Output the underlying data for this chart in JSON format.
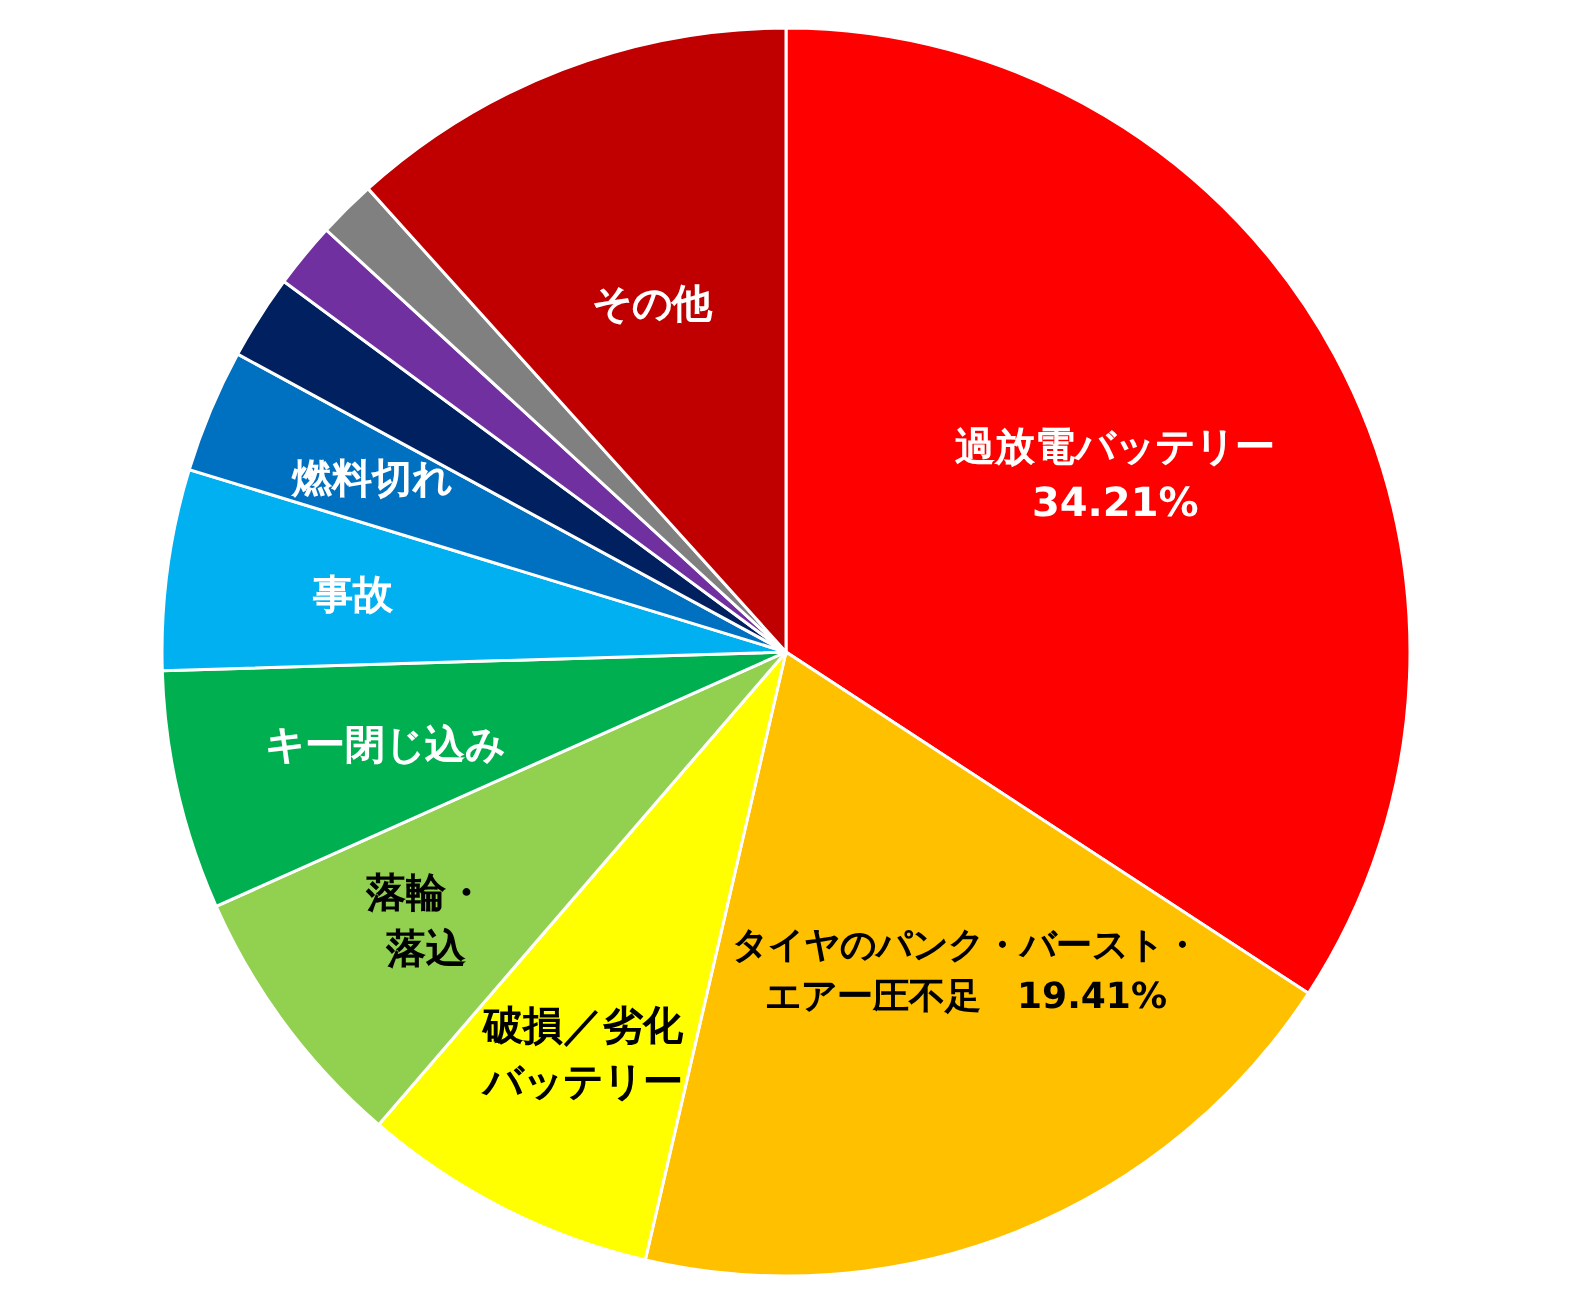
{
  "chart_data": {
    "type": "pie",
    "categories": [
      "過放電バッテリー",
      "タイヤのパンク・バースト・エアー圧不足",
      "破損／劣化バッテリー",
      "落輪・落込",
      "キー閉じ込み",
      "事故",
      "燃料切れ",
      null,
      null,
      null,
      "その他"
    ],
    "values": [
      34.21,
      19.41,
      7.7,
      7.0,
      6.2,
      5.2,
      3.2,
      2.2,
      1.7,
      1.5,
      11.68
    ],
    "colors": [
      "#ff0000",
      "#ffc000",
      "#ffff00",
      "#92d050",
      "#00b050",
      "#00b0f0",
      "#0070c0",
      "#002060",
      "#7030a0",
      "#808080",
      "#c00000"
    ],
    "value_labels": [
      "34.21%",
      "19.41%",
      null,
      null,
      null,
      null,
      null,
      null,
      null,
      null,
      null
    ]
  }
}
